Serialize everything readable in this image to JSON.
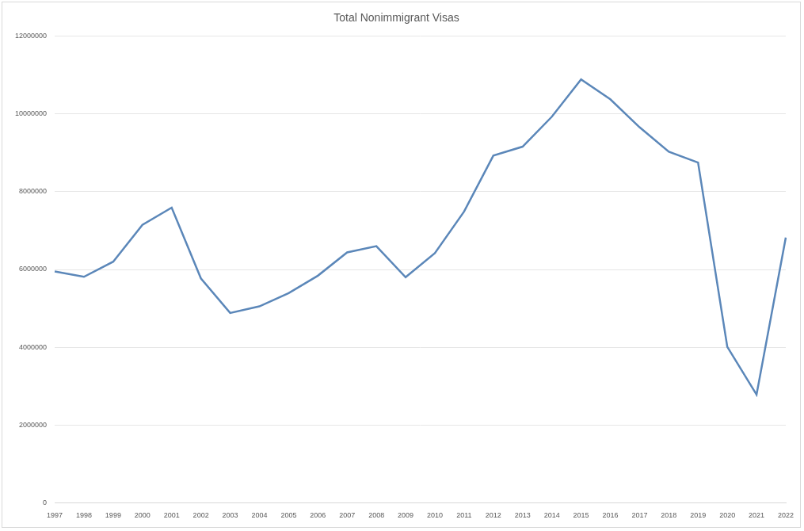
{
  "chart_data": {
    "type": "line",
    "title": "Total Nonimmigrant Visas",
    "categories": [
      "1997",
      "1998",
      "1999",
      "2000",
      "2001",
      "2002",
      "2003",
      "2004",
      "2005",
      "2006",
      "2007",
      "2008",
      "2009",
      "2010",
      "2011",
      "2012",
      "2013",
      "2014",
      "2015",
      "2016",
      "2017",
      "2018",
      "2019",
      "2020",
      "2021",
      "2022"
    ],
    "values": [
      5950000,
      5810000,
      6200000,
      7150000,
      7590000,
      5770000,
      4880000,
      5050000,
      5390000,
      5840000,
      6440000,
      6600000,
      5800000,
      6420000,
      7490000,
      8930000,
      9160000,
      9930000,
      10890000,
      10380000,
      9660000,
      9030000,
      8750000,
      4010000,
      2780000,
      6820000
    ],
    "color": "#5b87b9",
    "ylim": [
      0,
      12000000
    ],
    "yticks": [
      0,
      2000000,
      4000000,
      6000000,
      8000000,
      10000000,
      12000000
    ],
    "grid": true
  }
}
